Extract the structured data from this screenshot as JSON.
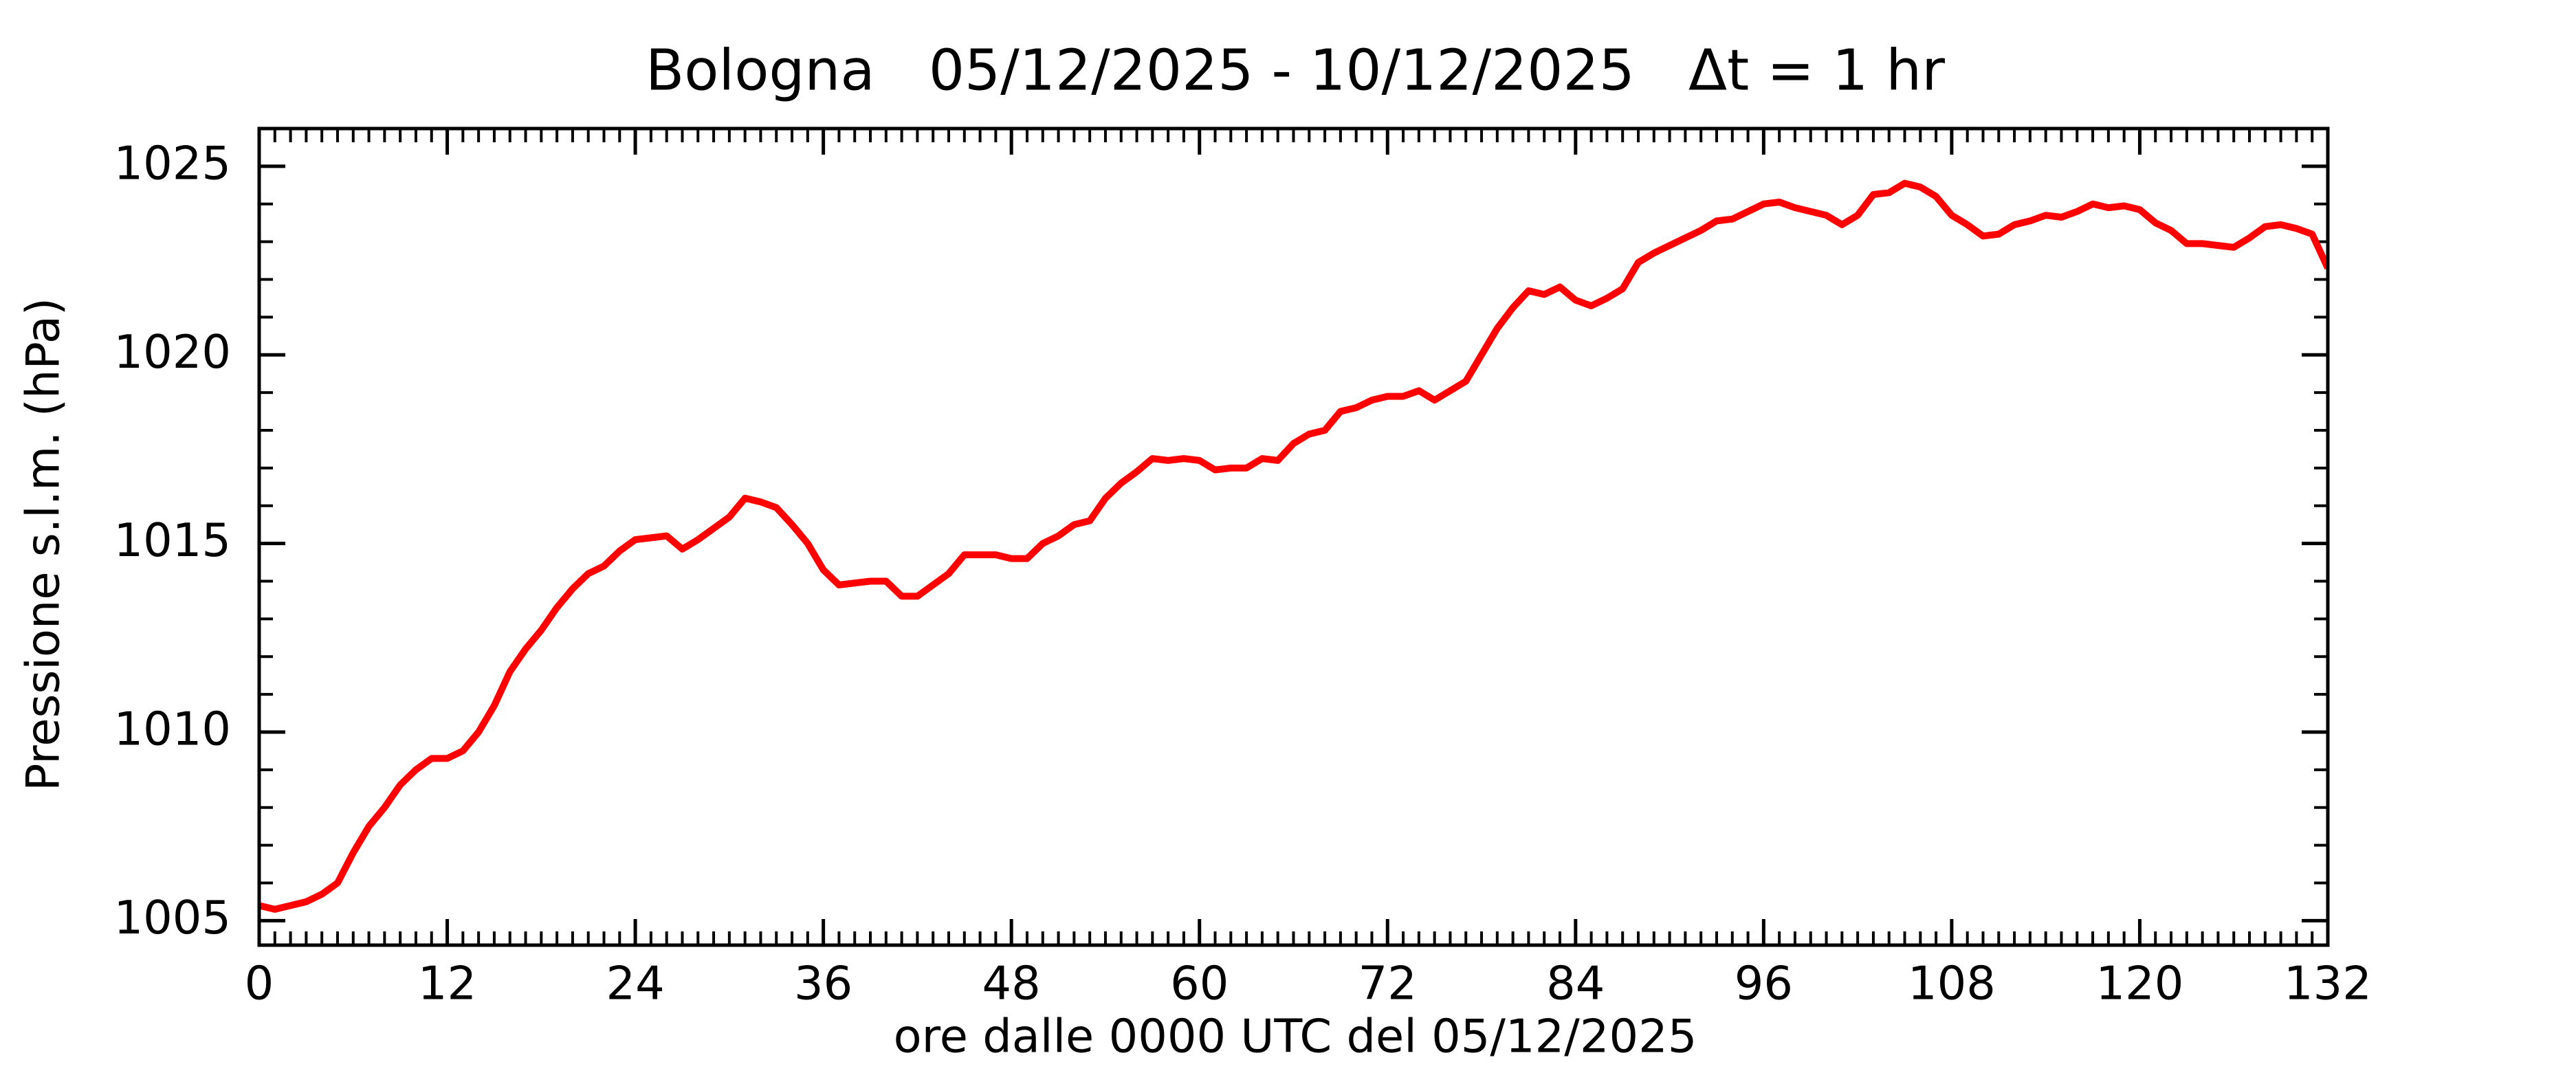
{
  "chart_data": {
    "type": "line",
    "title": "Bologna   05/12/2025 - 10/12/2025   Δt = 1 hr",
    "x_label": "ore dalle 0000 UTC del 05/12/2025",
    "y_label": "Pressione s.l.m. (hPa)",
    "x": [
      0,
      1,
      2,
      3,
      4,
      5,
      6,
      7,
      8,
      9,
      10,
      11,
      12,
      13,
      14,
      15,
      16,
      17,
      18,
      19,
      20,
      21,
      22,
      23,
      24,
      25,
      26,
      27,
      28,
      29,
      30,
      31,
      32,
      33,
      34,
      35,
      36,
      37,
      38,
      39,
      40,
      41,
      42,
      43,
      44,
      45,
      46,
      47,
      48,
      49,
      50,
      51,
      52,
      53,
      54,
      55,
      56,
      57,
      58,
      59,
      60,
      61,
      62,
      63,
      64,
      65,
      66,
      67,
      68,
      69,
      70,
      71,
      72,
      73,
      74,
      75,
      76,
      77,
      78,
      79,
      80,
      81,
      82,
      83,
      84,
      85,
      86,
      87,
      88,
      89,
      90,
      91,
      92,
      93,
      94,
      95,
      96,
      97,
      98,
      99,
      100,
      101,
      102,
      103,
      104,
      105,
      106,
      107,
      108,
      109,
      110,
      111,
      112,
      113,
      114,
      115,
      116,
      117,
      118,
      119,
      120,
      121,
      122,
      123,
      124,
      125,
      126,
      127,
      128,
      129,
      130,
      131,
      132
    ],
    "series": [
      {
        "name": "Pressione",
        "color": "#ff0000",
        "values": [
          1005.4,
          1005.3,
          1005.4,
          1005.5,
          1005.7,
          1006.0,
          1006.8,
          1007.5,
          1008.0,
          1008.6,
          1009.0,
          1009.3,
          1009.3,
          1009.5,
          1010.0,
          1010.7,
          1011.6,
          1012.2,
          1012.7,
          1013.3,
          1013.8,
          1014.2,
          1014.4,
          1014.8,
          1015.1,
          1015.15,
          1015.2,
          1014.85,
          1015.1,
          1015.4,
          1015.7,
          1016.2,
          1016.1,
          1015.95,
          1015.5,
          1015.0,
          1014.3,
          1013.9,
          1013.95,
          1014.0,
          1014.0,
          1013.6,
          1013.6,
          1013.9,
          1014.2,
          1014.7,
          1014.7,
          1014.7,
          1014.6,
          1014.6,
          1015.0,
          1015.2,
          1015.5,
          1015.6,
          1016.2,
          1016.6,
          1016.9,
          1017.25,
          1017.2,
          1017.25,
          1017.2,
          1016.95,
          1017.0,
          1017.0,
          1017.25,
          1017.2,
          1017.65,
          1017.9,
          1018.0,
          1018.5,
          1018.6,
          1018.8,
          1018.9,
          1018.9,
          1019.05,
          1018.8,
          1019.05,
          1019.3,
          1020.0,
          1020.7,
          1021.25,
          1021.7,
          1021.6,
          1021.8,
          1021.45,
          1021.3,
          1021.5,
          1021.75,
          1022.45,
          1022.7,
          1022.9,
          1023.1,
          1023.3,
          1023.55,
          1023.6,
          1023.8,
          1024.0,
          1024.05,
          1023.9,
          1023.8,
          1023.7,
          1023.45,
          1023.7,
          1024.25,
          1024.3,
          1024.55,
          1024.45,
          1024.2,
          1023.7,
          1023.45,
          1023.15,
          1023.2,
          1023.45,
          1023.55,
          1023.7,
          1023.65,
          1023.8,
          1024.0,
          1023.9,
          1023.95,
          1023.85,
          1023.5,
          1023.3,
          1022.95,
          1022.95,
          1022.9,
          1022.85,
          1023.1,
          1023.4,
          1023.45,
          1023.35,
          1023.2,
          1022.3
        ]
      }
    ],
    "xlim": [
      0,
      132
    ],
    "xticks": [
      0,
      12,
      24,
      36,
      48,
      60,
      72,
      84,
      96,
      108,
      120,
      132
    ],
    "ylim": [
      1004.35,
      1026
    ],
    "yticks": [
      1005,
      1010,
      1015,
      1020,
      1025
    ],
    "grid": false
  }
}
